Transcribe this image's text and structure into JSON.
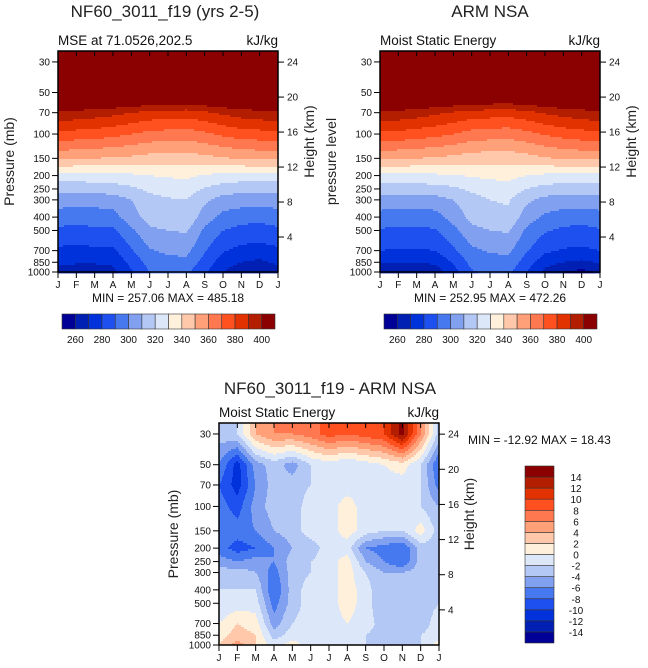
{
  "chart_data": [
    {
      "type": "heatmap",
      "title": "NF60_3011_f19 (yrs 2-5)",
      "subtitle": "MSE at 71.0526,202.5",
      "units": "kJ/kg",
      "ylabel": "Pressure (mb)",
      "ylabel_right": "Height (km)",
      "minmax": "MIN = 257.06 MAX = 485.18",
      "months": [
        "J",
        "F",
        "M",
        "A",
        "M",
        "J",
        "J",
        "A",
        "S",
        "O",
        "N",
        "D",
        "J"
      ],
      "pressure_levels": [
        30,
        50,
        70,
        100,
        150,
        200,
        250,
        300,
        400,
        500,
        700,
        850,
        1000
      ],
      "height_ticks": [
        24,
        20,
        16,
        12,
        8,
        4
      ],
      "ylim_mb": [
        25,
        1000
      ],
      "levels": [
        260,
        270,
        280,
        290,
        300,
        310,
        320,
        330,
        340,
        350,
        360,
        370,
        380,
        390,
        400
      ],
      "colorbar_labels": [
        "260",
        "280",
        "300",
        "320",
        "340",
        "360",
        "380",
        "400"
      ],
      "values": [
        [
          470,
          470,
          470,
          470,
          470,
          470,
          470,
          470,
          470,
          470,
          470,
          470,
          470
        ],
        [
          425,
          425,
          425,
          425,
          424,
          423,
          422,
          422,
          423,
          424,
          425,
          425,
          425
        ],
        [
          398,
          397,
          395,
          393,
          390,
          387,
          386,
          385,
          388,
          392,
          395,
          397,
          398
        ],
        [
          377,
          376,
          375,
          373,
          370,
          367,
          366,
          365,
          368,
          372,
          375,
          376,
          377
        ],
        [
          352,
          351,
          350,
          349,
          348,
          346,
          345,
          345,
          347,
          349,
          351,
          352,
          352
        ],
        [
          326,
          326,
          326,
          327,
          328,
          330,
          331,
          332,
          329,
          327,
          326,
          326,
          326
        ],
        [
          313,
          313,
          314,
          315,
          318,
          322,
          324,
          325,
          319,
          315,
          313,
          313,
          313
        ],
        [
          305,
          304,
          304,
          305,
          310,
          317,
          319,
          320,
          312,
          306,
          305,
          305,
          305
        ],
        [
          295,
          294,
          295,
          296,
          306,
          314,
          317,
          318,
          305,
          297,
          294,
          293,
          295
        ],
        [
          288,
          287,
          288,
          288,
          298,
          308,
          310,
          311,
          298,
          290,
          287,
          286,
          288
        ],
        [
          278,
          277,
          278,
          278,
          289,
          299,
          302,
          303,
          291,
          281,
          277,
          276,
          278
        ],
        [
          272,
          271,
          271,
          272,
          283,
          294,
          297,
          297,
          286,
          275,
          270,
          268,
          272
        ],
        [
          266,
          265,
          265,
          267,
          279,
          290,
          292,
          292,
          282,
          270,
          263,
          261,
          266
        ]
      ]
    },
    {
      "type": "heatmap",
      "title": "ARM NSA",
      "subtitle": "Moist Static Energy",
      "units": "kJ/kg",
      "ylabel": "pressure level",
      "ylabel_right": "Height (km)",
      "minmax": "MIN = 252.95 MAX = 472.26",
      "months": [
        "J",
        "F",
        "M",
        "A",
        "M",
        "J",
        "J",
        "A",
        "S",
        "O",
        "N",
        "D",
        "J"
      ],
      "pressure_levels": [
        30,
        50,
        70,
        100,
        150,
        200,
        250,
        300,
        400,
        500,
        700,
        850,
        1000
      ],
      "height_ticks": [
        24,
        20,
        16,
        12,
        8,
        4
      ],
      "ylim_mb": [
        25,
        1000
      ],
      "levels": [
        260,
        270,
        280,
        290,
        300,
        310,
        320,
        330,
        340,
        350,
        360,
        370,
        380,
        390,
        400
      ],
      "colorbar_labels": [
        "260",
        "280",
        "300",
        "320",
        "340",
        "360",
        "380",
        "400"
      ],
      "values": [
        [
          460,
          460,
          460,
          460,
          460,
          460,
          460,
          460,
          460,
          460,
          460,
          460,
          460
        ],
        [
          424,
          424,
          424,
          423,
          422,
          421,
          420,
          420,
          421,
          422,
          424,
          424,
          424
        ],
        [
          398,
          397,
          395,
          392,
          389,
          386,
          385,
          384,
          387,
          391,
          394,
          396,
          398
        ],
        [
          378,
          377,
          375,
          373,
          370,
          366,
          365,
          364,
          367,
          371,
          374,
          376,
          378
        ],
        [
          352,
          351,
          350,
          349,
          347,
          345,
          344,
          344,
          346,
          349,
          351,
          352,
          352
        ],
        [
          327,
          327,
          327,
          328,
          329,
          331,
          332,
          333,
          330,
          328,
          327,
          327,
          327
        ],
        [
          315,
          315,
          315,
          316,
          318,
          322,
          325,
          326,
          320,
          316,
          315,
          315,
          315
        ],
        [
          306,
          305,
          305,
          306,
          310,
          316,
          320,
          321,
          312,
          307,
          306,
          306,
          306
        ],
        [
          296,
          295,
          295,
          296,
          304,
          313,
          317,
          318,
          305,
          298,
          295,
          294,
          296
        ],
        [
          289,
          288,
          288,
          289,
          297,
          307,
          310,
          311,
          298,
          291,
          288,
          287,
          289
        ],
        [
          280,
          279,
          279,
          280,
          288,
          298,
          301,
          302,
          291,
          282,
          279,
          278,
          280
        ],
        [
          271,
          270,
          270,
          272,
          281,
          293,
          296,
          297,
          285,
          274,
          270,
          268,
          271
        ],
        [
          262,
          261,
          262,
          264,
          276,
          289,
          292,
          292,
          280,
          267,
          260,
          257,
          262
        ]
      ]
    },
    {
      "type": "heatmap",
      "title": "NF60_3011_f19 - ARM NSA",
      "subtitle": "Moist Static Energy",
      "units": "kJ/kg",
      "ylabel": "Pressure (mb)",
      "ylabel_right": "Height (km)",
      "minmax": "MIN = -12.92 MAX =  18.43",
      "months": [
        "J",
        "F",
        "M",
        "A",
        "M",
        "J",
        "J",
        "A",
        "S",
        "O",
        "N",
        "D",
        "J"
      ],
      "pressure_levels": [
        30,
        50,
        70,
        100,
        150,
        200,
        250,
        300,
        400,
        500,
        700,
        850,
        1000
      ],
      "height_ticks": [
        24,
        20,
        16,
        12,
        8,
        4
      ],
      "ylim_mb": [
        25,
        1000
      ],
      "levels": [
        -14,
        -12,
        -10,
        -8,
        -6,
        -4,
        -2,
        0,
        2,
        4,
        6,
        8,
        10,
        12,
        14
      ],
      "colorbar_labels": [
        "-14",
        "-12",
        "-10",
        "-8",
        "-6",
        "-4",
        "-2",
        "0",
        "2",
        "4",
        "6",
        "8",
        "10",
        "12",
        "14"
      ],
      "values": [
        [
          -3,
          -2,
          4,
          6,
          6,
          7,
          9,
          8,
          9,
          10,
          15,
          6,
          -3
        ],
        [
          -6,
          -11,
          -5,
          -3,
          -5,
          -2,
          -1,
          -2,
          -1,
          0,
          1,
          -2,
          -8
        ],
        [
          -8,
          -11,
          -6,
          -3,
          -3,
          -2,
          -1,
          -1,
          -1,
          -1,
          -1,
          -2,
          -7
        ],
        [
          -7,
          -9,
          -5,
          -3,
          -3,
          -1,
          -1,
          1,
          -1,
          -1,
          -1,
          -2,
          -4
        ],
        [
          -6,
          -7,
          -6,
          -4,
          -3,
          -1,
          -1,
          1,
          -1,
          -2,
          -2,
          1,
          -3
        ],
        [
          -7,
          -9,
          -8,
          -6,
          -4,
          -3,
          -1,
          -1,
          -6,
          -7,
          -8,
          -3,
          -3
        ],
        [
          -5,
          -6,
          -5,
          -6,
          -3,
          -2,
          -1,
          1,
          -4,
          -6,
          -8,
          -3,
          -2
        ],
        [
          -3,
          -3,
          -4,
          -7,
          -3,
          -2,
          -1,
          1,
          -2,
          -4,
          -4,
          -3,
          -2
        ],
        [
          -2,
          -2,
          -2,
          -8,
          -3,
          -1,
          -1,
          1,
          -1,
          -4,
          -4,
          -3,
          -2
        ],
        [
          -2,
          -1,
          -1,
          -7,
          -3,
          -1,
          -1,
          1,
          -1,
          -4,
          -4,
          -3,
          -2
        ],
        [
          0,
          2,
          1,
          -5,
          -2,
          -1,
          -1,
          0,
          -1,
          -3,
          -2,
          -3,
          -1
        ],
        [
          1,
          3,
          2,
          -3,
          -1,
          -1,
          -1,
          -1,
          -2,
          -3,
          -3,
          -2,
          -1
        ],
        [
          2,
          5,
          2,
          -1,
          1,
          -1,
          -2,
          -1,
          -2,
          -3,
          -3,
          -2,
          1
        ]
      ]
    }
  ],
  "palette": [
    "#000096",
    "#0020b4",
    "#0032dc",
    "#1e50f0",
    "#4678f0",
    "#82a0f0",
    "#b4c8f5",
    "#dce8fa",
    "#fff0dc",
    "#ffc8aa",
    "#ffa078",
    "#ff7850",
    "#ff5020",
    "#e13200",
    "#b41e00",
    "#8b0000"
  ]
}
